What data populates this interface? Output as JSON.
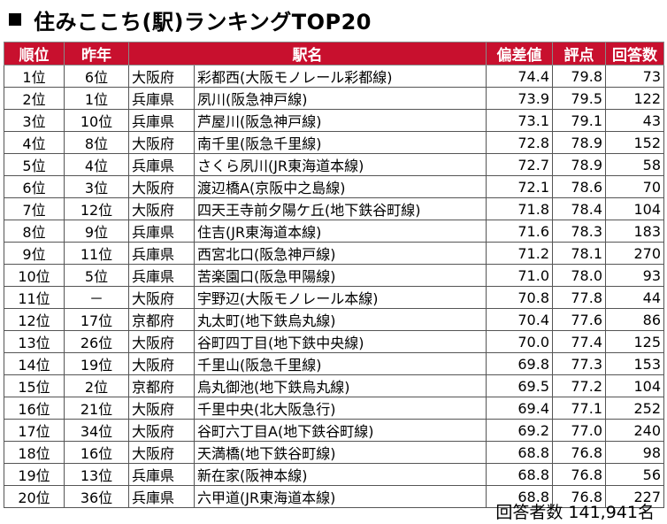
{
  "title": "住みここち(駅)ランキングTOP20",
  "headers": [
    "順位",
    "昨年",
    "",
    "駅名",
    "偏差値",
    "評点",
    "回答数"
  ],
  "rows": [
    [
      "1位",
      "6位",
      "大阪府",
      "彩都西(大阪モノレール彩都線)",
      "74.4",
      "79.8",
      "73"
    ],
    [
      "2位",
      "1位",
      "兵庫県",
      "夙川(阪急神戸線)",
      "73.9",
      "79.5",
      "122"
    ],
    [
      "3位",
      "10位",
      "兵庫県",
      "芦屋川(阪急神戸線)",
      "73.1",
      "79.1",
      "43"
    ],
    [
      "4位",
      "8位",
      "大阪府",
      "南千里(阪急千里線)",
      "72.8",
      "78.9",
      "152"
    ],
    [
      "5位",
      "4位",
      "兵庫県",
      "さくら夙川(JR東海道本線)",
      "72.7",
      "78.9",
      "58"
    ],
    [
      "6位",
      "3位",
      "大阪府",
      "渡辺橋A(京阪中之島線)",
      "72.1",
      "78.6",
      "70"
    ],
    [
      "7位",
      "12位",
      "大阪府",
      "四天王寺前夕陽ケ丘(地下鉄谷町線)",
      "71.8",
      "78.4",
      "104"
    ],
    [
      "8位",
      "9位",
      "兵庫県",
      "住吉(JR東海道本線)",
      "71.6",
      "78.3",
      "183"
    ],
    [
      "9位",
      "11位",
      "兵庫県",
      "西宮北口(阪急神戸線)",
      "71.2",
      "78.1",
      "270"
    ],
    [
      "10位",
      "5位",
      "兵庫県",
      "苦楽園口(阪急甲陽線)",
      "71.0",
      "78.0",
      "93"
    ],
    [
      "11位",
      "－",
      "大阪府",
      "宇野辺(大阪モノレール本線)",
      "70.8",
      "77.8",
      "44"
    ],
    [
      "12位",
      "17位",
      "京都府",
      "丸太町(地下鉄烏丸線)",
      "70.4",
      "77.6",
      "86"
    ],
    [
      "13位",
      "26位",
      "大阪府",
      "谷町四丁目(地下鉄中央線)",
      "70.0",
      "77.4",
      "125"
    ],
    [
      "14位",
      "19位",
      "大阪府",
      "千里山(阪急千里線)",
      "69.8",
      "77.3",
      "153"
    ],
    [
      "15位",
      "2位",
      "京都府",
      "烏丸御池(地下鉄烏丸線)",
      "69.5",
      "77.2",
      "104"
    ],
    [
      "16位",
      "21位",
      "大阪府",
      "千里中央(北大阪急行)",
      "69.4",
      "77.1",
      "252"
    ],
    [
      "17位",
      "34位",
      "大阪府",
      "谷町六丁目A(地下鉄谷町線)",
      "69.2",
      "77.0",
      "240"
    ],
    [
      "18位",
      "16位",
      "大阪府",
      "天満橋(地下鉄谷町線)",
      "68.8",
      "76.8",
      "98"
    ],
    [
      "19位",
      "13位",
      "兵庫県",
      "新在家(阪神本線)",
      "68.8",
      "76.8",
      "56"
    ],
    [
      "20位",
      "36位",
      "兵庫県",
      "六甲道(JR東海道本線)",
      "68.8",
      "76.8",
      "227"
    ]
  ],
  "total": "回答者数 141,941名"
}
